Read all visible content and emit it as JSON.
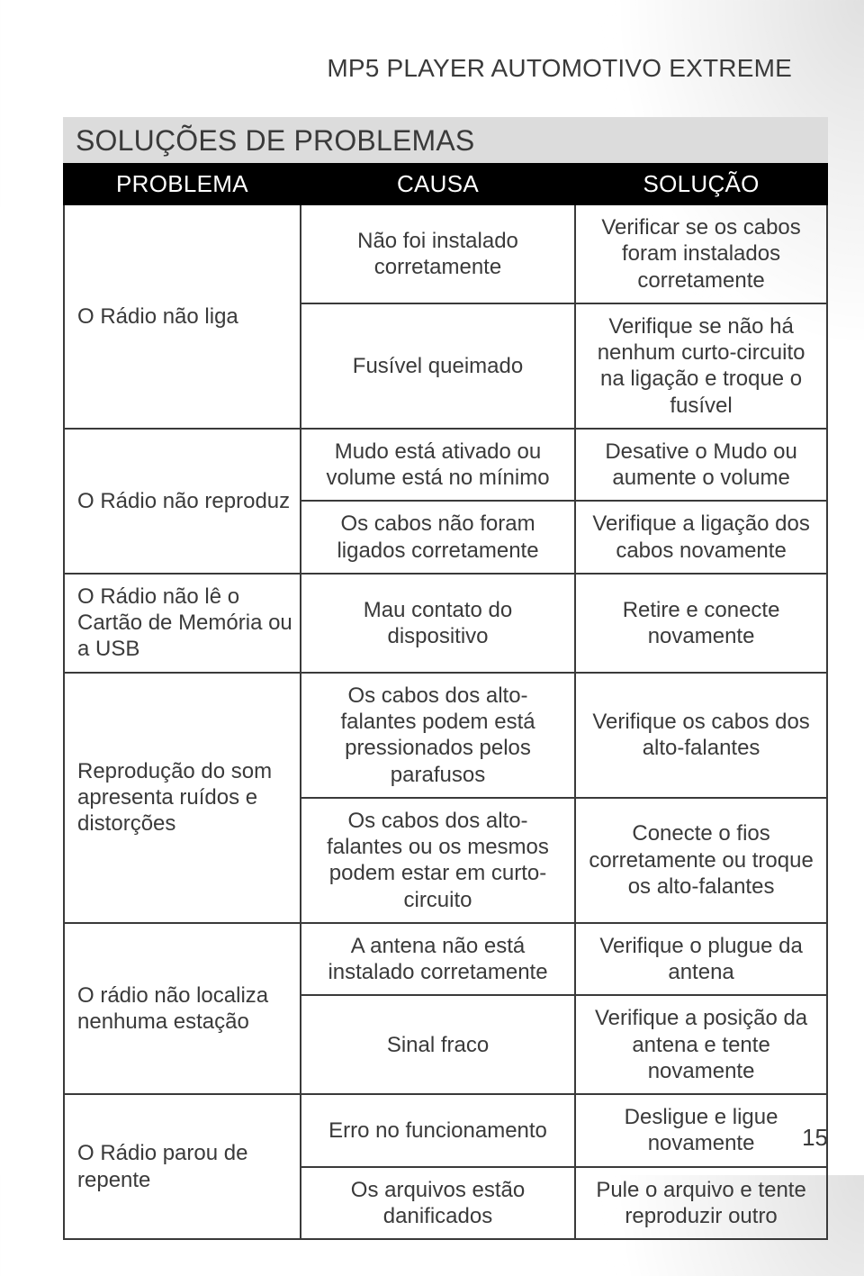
{
  "document": {
    "title": "MP5 PLAYER AUTOMOTIVO EXTREME",
    "section_title": "SOLUÇÕES DE PROBLEMAS",
    "page_number": "15"
  },
  "colors": {
    "header_bg": "#000000",
    "header_text": "#ffffff",
    "section_bg": "#dcdcdc",
    "border": "#3a3a3a",
    "body_text": "#3a3a3a",
    "page_bg": "#ffffff"
  },
  "typography": {
    "doc_title_fontsize": 28,
    "section_title_fontsize": 32,
    "th_fontsize": 26,
    "td_fontsize": 24,
    "font_family": "Arial"
  },
  "table": {
    "columns": [
      {
        "key": "problema",
        "label": "PROBLEMA",
        "width_pct": 31,
        "align": "left"
      },
      {
        "key": "causa",
        "label": "CAUSA",
        "width_pct": 36,
        "align": "center"
      },
      {
        "key": "solucao",
        "label": "SOLUÇÃO",
        "width_pct": 33,
        "align": "center"
      }
    ],
    "groups": [
      {
        "problem": "O Rádio não liga",
        "rows": [
          {
            "cause": "Não foi instalado corretamente",
            "solution": "Verificar se os cabos foram instalados corretamente"
          },
          {
            "cause": "Fusível queimado",
            "solution": "Verifique se não há nenhum curto-circuito na ligação e troque o fusível"
          }
        ]
      },
      {
        "problem": "O Rádio não reproduz",
        "rows": [
          {
            "cause": "Mudo está ativado ou volume está no mínimo",
            "solution": "Desative o Mudo ou aumente o volume"
          },
          {
            "cause": "Os cabos não foram ligados corretamente",
            "solution": "Verifique a ligação dos cabos novamente"
          }
        ]
      },
      {
        "problem": "O Rádio não lê o Cartão de Memória ou a USB",
        "rows": [
          {
            "cause": "Mau contato do dispositivo",
            "solution": "Retire e conecte novamente"
          }
        ]
      },
      {
        "problem": "Reprodução do som apresenta ruídos e distorções",
        "rows": [
          {
            "cause": "Os cabos dos alto-falantes podem está pressionados pelos parafusos",
            "solution": "Verifique os cabos dos alto-falantes"
          },
          {
            "cause": "Os cabos dos alto-falantes ou os mesmos podem estar em curto-circuito",
            "solution": "Conecte o fios corretamente ou troque os alto-falantes"
          }
        ]
      },
      {
        "problem": "O rádio não localiza nenhuma estação",
        "rows": [
          {
            "cause": "A antena não está instalado corretamente",
            "solution": "Verifique o plugue da antena"
          },
          {
            "cause": "Sinal fraco",
            "solution": "Verifique a posição da antena e tente novamente"
          }
        ]
      },
      {
        "problem": "O Rádio parou de repente",
        "rows": [
          {
            "cause": "Erro no funcionamento",
            "solution": "Desligue e ligue novamente"
          },
          {
            "cause": "Os arquivos estão danificados",
            "solution": "Pule o arquivo e tente reproduzir outro"
          }
        ]
      }
    ]
  }
}
